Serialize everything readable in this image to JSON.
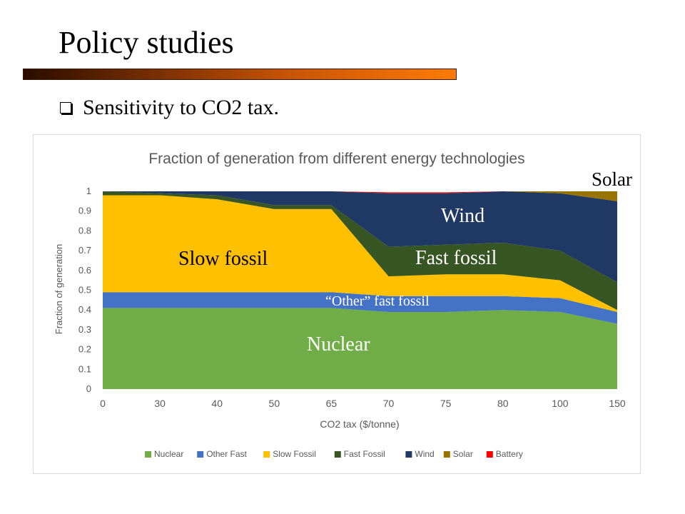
{
  "slide": {
    "title": "Policy studies",
    "bullet": "Sensitivity to CO2 tax."
  },
  "overlays": {
    "solar": "Solar",
    "wind": "Wind",
    "fast_fossil": "Fast fossil",
    "slow_fossil": "Slow fossil",
    "other_fast": "“Other” fast fossil",
    "nuclear": "Nuclear"
  },
  "chart_data": {
    "type": "area",
    "title": "Fraction of generation from different energy technologies",
    "xlabel": "CO2 tax ($/tonne)",
    "ylabel": "Fraction of generation",
    "ylim": [
      0,
      1
    ],
    "yticks": [
      "0",
      "0.1",
      "0.2",
      "0.3",
      "0.4",
      "0.5",
      "0.6",
      "0.7",
      "0.8",
      "0.9",
      "1"
    ],
    "categories": [
      "0",
      "30",
      "40",
      "50",
      "65",
      "70",
      "75",
      "80",
      "100",
      "150"
    ],
    "stacked": true,
    "grid": false,
    "legend": "bottom",
    "series": [
      {
        "name": "Nuclear",
        "color": "#70ad47",
        "values": [
          0.41,
          0.41,
          0.41,
          0.41,
          0.41,
          0.39,
          0.39,
          0.4,
          0.39,
          0.33
        ]
      },
      {
        "name": "Other Fast",
        "color": "#4472c4",
        "values": [
          0.08,
          0.08,
          0.08,
          0.08,
          0.08,
          0.08,
          0.08,
          0.07,
          0.07,
          0.06
        ]
      },
      {
        "name": "Slow Fossil",
        "color": "#ffc000",
        "values": [
          0.49,
          0.49,
          0.47,
          0.42,
          0.42,
          0.1,
          0.11,
          0.11,
          0.09,
          0.01
        ]
      },
      {
        "name": "Fast Fossil",
        "color": "#375623",
        "values": [
          0.02,
          0.01,
          0.02,
          0.02,
          0.02,
          0.15,
          0.15,
          0.16,
          0.15,
          0.14
        ]
      },
      {
        "name": "Wind",
        "color": "#203864",
        "values": [
          0.0,
          0.01,
          0.02,
          0.07,
          0.07,
          0.27,
          0.26,
          0.26,
          0.29,
          0.41
        ]
      },
      {
        "name": "Solar",
        "color": "#997300",
        "values": [
          0.0,
          0.0,
          0.0,
          0.0,
          0.0,
          0.0,
          0.0,
          0.0,
          0.01,
          0.05
        ]
      },
      {
        "name": "Battery",
        "color": "#ff0000",
        "values": [
          0.0,
          0.0,
          0.0,
          0.0,
          0.0,
          0.005,
          0.005,
          0.005,
          0.005,
          0.01
        ]
      }
    ]
  }
}
